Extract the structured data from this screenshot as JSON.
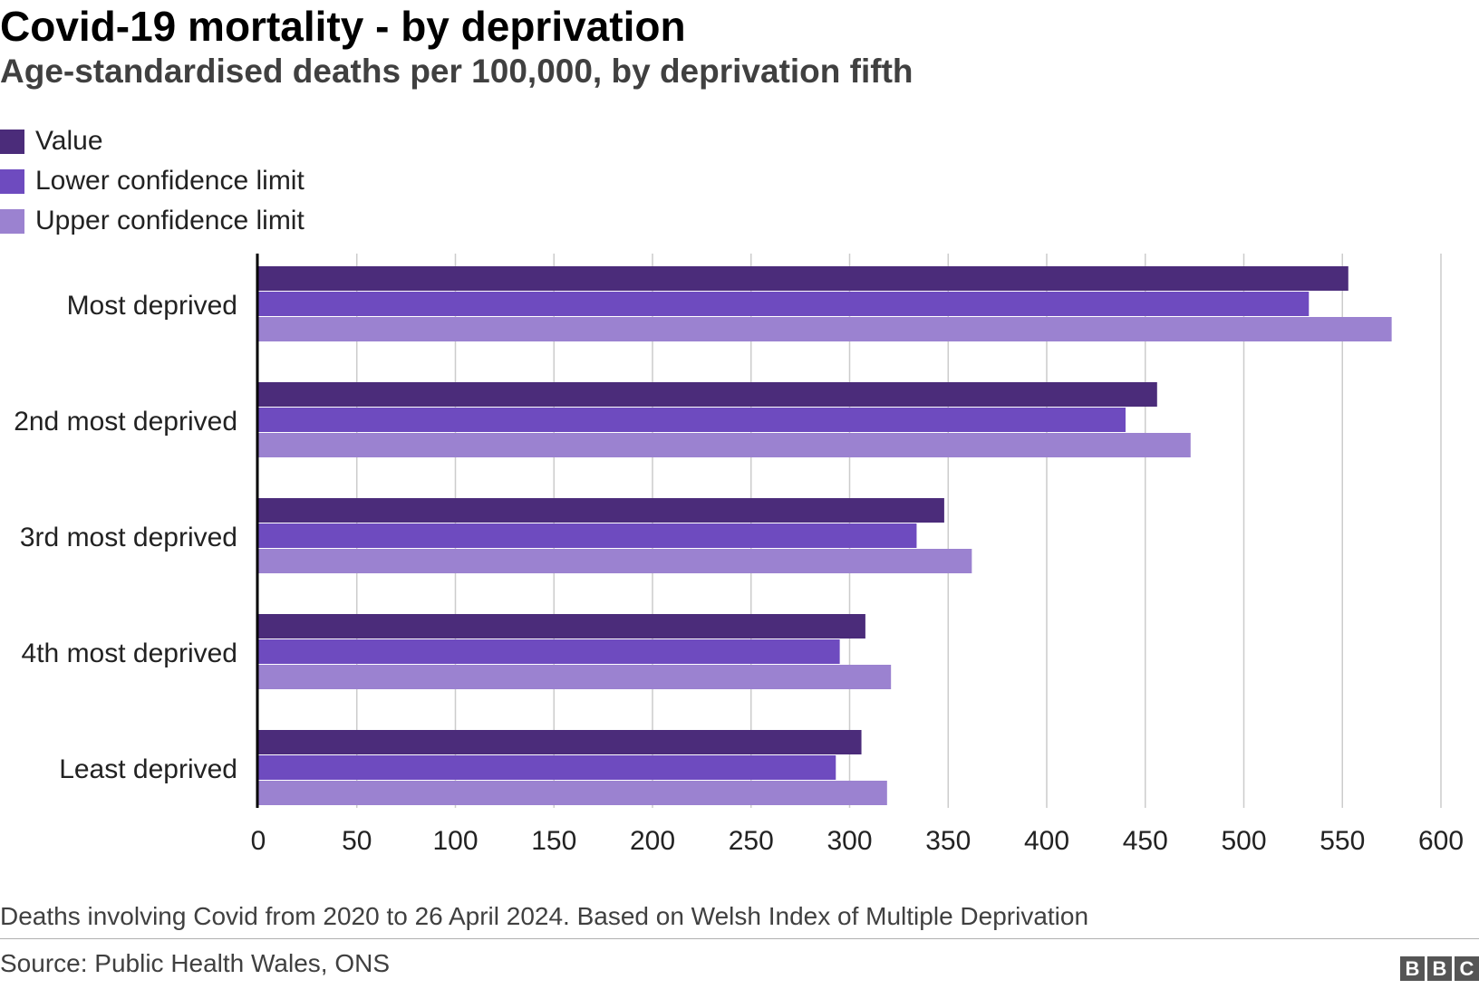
{
  "header": {
    "title": "Covid-19 mortality - by deprivation",
    "subtitle": "Age-standardised deaths per 100,000, by deprivation fifth"
  },
  "legend": [
    {
      "label": "Value",
      "color": "#4b2c7a"
    },
    {
      "label": "Lower confidence limit",
      "color": "#6e4bbf"
    },
    {
      "label": "Upper confidence limit",
      "color": "#9b82d0"
    }
  ],
  "chart_data": {
    "type": "bar",
    "orientation": "horizontal",
    "title": "Covid-19 mortality - by deprivation",
    "subtitle": "Age-standardised deaths per 100,000, by deprivation fifth",
    "categories": [
      "Most deprived",
      "2nd most deprived",
      "3rd most deprived",
      "4th most deprived",
      "Least deprived"
    ],
    "series": [
      {
        "name": "Value",
        "color": "#4b2c7a",
        "values": [
          553,
          456,
          348,
          308,
          306
        ]
      },
      {
        "name": "Lower confidence limit",
        "color": "#6e4bbf",
        "values": [
          533,
          440,
          334,
          295,
          293
        ]
      },
      {
        "name": "Upper confidence limit",
        "color": "#9b82d0",
        "values": [
          575,
          473,
          362,
          321,
          319
        ]
      }
    ],
    "xlim": [
      0,
      600
    ],
    "xticks": [
      0,
      50,
      100,
      150,
      200,
      250,
      300,
      350,
      400,
      450,
      500,
      550,
      600
    ],
    "xlabel": "",
    "ylabel": "",
    "grid": "vertical",
    "legend_position": "top-left"
  },
  "footer": {
    "note": "Deaths involving Covid from 2020 to 26 April 2024. Based on Welsh Index of Multiple Deprivation",
    "source": "Source: Public Health Wales, ONS",
    "logo_letters": [
      "B",
      "B",
      "C"
    ]
  }
}
